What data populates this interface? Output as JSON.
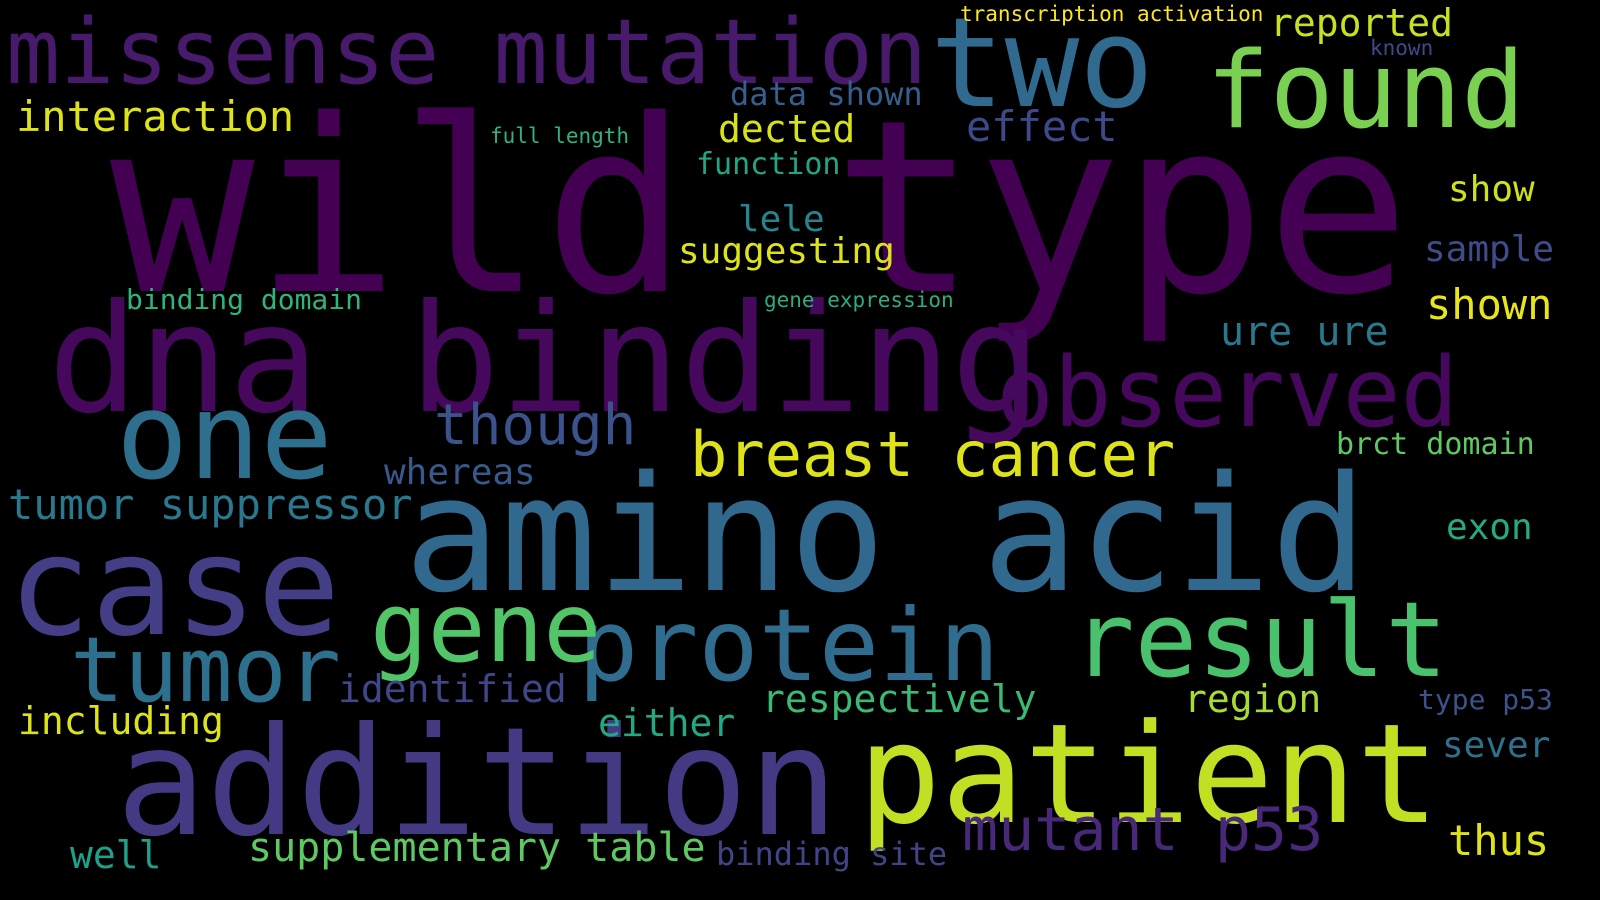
{
  "background": "#000000",
  "words": [
    {
      "text": "wild type",
      "color": "#440154"
    },
    {
      "text": "amino acid",
      "color": "#31688e"
    },
    {
      "text": "dna binding",
      "color": "#46085c"
    },
    {
      "text": "missense mutation",
      "color": "#481a6c"
    },
    {
      "text": "addition",
      "color": "#443a83"
    },
    {
      "text": "patient",
      "color": "#c2df23"
    },
    {
      "text": "case",
      "color": "#433e85"
    },
    {
      "text": "two",
      "color": "#306a8e"
    },
    {
      "text": "found",
      "color": "#7ad151"
    },
    {
      "text": "one",
      "color": "#2e6f8e"
    },
    {
      "text": "protein",
      "color": "#2f6c8e"
    },
    {
      "text": "result",
      "color": "#4ac16d"
    },
    {
      "text": "observed",
      "color": "#46085c"
    },
    {
      "text": "tumor",
      "color": "#2d708e"
    },
    {
      "text": "gene",
      "color": "#52c569"
    },
    {
      "text": "breast cancer",
      "color": "#dde318"
    },
    {
      "text": "mutant p53",
      "color": "#482979"
    },
    {
      "text": "though",
      "color": "#3b528b"
    },
    {
      "text": "supplementary table",
      "color": "#5ec962"
    },
    {
      "text": "tumor suppressor",
      "color": "#2a788e"
    },
    {
      "text": "interaction",
      "color": "#dde318"
    },
    {
      "text": "reported",
      "color": "#c8e020"
    },
    {
      "text": "effect",
      "color": "#3e4989"
    },
    {
      "text": "dected",
      "color": "#d8e219"
    },
    {
      "text": "data shown",
      "color": "#355f8d"
    },
    {
      "text": "identified",
      "color": "#404688"
    },
    {
      "text": "whereas",
      "color": "#38598c"
    },
    {
      "text": "respectively",
      "color": "#3aba76"
    },
    {
      "text": "region",
      "color": "#a8db34"
    },
    {
      "text": "either",
      "color": "#22a884"
    },
    {
      "text": "including",
      "color": "#dde318"
    },
    {
      "text": "suggesting",
      "color": "#dde318"
    },
    {
      "text": "shown",
      "color": "#e7e419"
    },
    {
      "text": "show",
      "color": "#d0e11c"
    },
    {
      "text": "sample",
      "color": "#3e4c8a"
    },
    {
      "text": "ure ure",
      "color": "#2a788e"
    },
    {
      "text": "lele",
      "color": "#25858e"
    },
    {
      "text": "function",
      "color": "#21a685"
    },
    {
      "text": "exon",
      "color": "#25ab82"
    },
    {
      "text": "sever",
      "color": "#2d718e"
    },
    {
      "text": "thus",
      "color": "#dde318"
    },
    {
      "text": "well",
      "color": "#1fa088"
    },
    {
      "text": "binding site",
      "color": "#414487"
    },
    {
      "text": "brct domain",
      "color": "#5ec962"
    },
    {
      "text": "type p53",
      "color": "#3b528b"
    },
    {
      "text": "binding domain",
      "color": "#2fb47c"
    },
    {
      "text": "gene expression",
      "color": "#29af7f"
    },
    {
      "text": "full length",
      "color": "#2fb47c"
    },
    {
      "text": "transcription activation",
      "color": "#fde725"
    },
    {
      "text": "known",
      "color": "#3e4989"
    }
  ]
}
